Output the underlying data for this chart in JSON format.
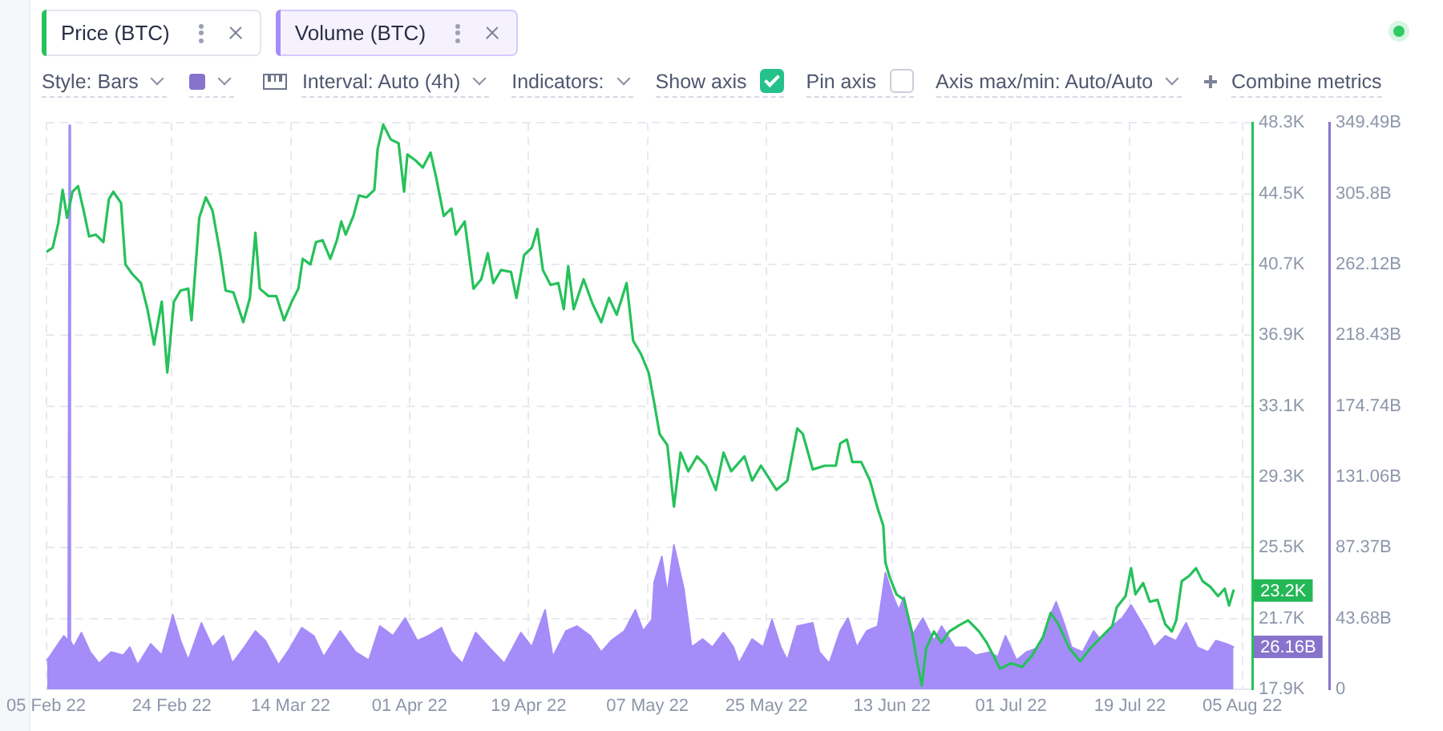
{
  "chart_data": {
    "type": "line",
    "annotations": [
      "Style: Bars",
      "Interval: Auto (4h)",
      "Indicators:",
      "Show axis",
      "Pin axis",
      "Axis max/min: Auto/Auto",
      "Combine metrics"
    ],
    "series": [
      {
        "name": "Price (BTC)",
        "type": "line",
        "color": "#26c15a",
        "x": [
          "2022-02-05T04:00",
          "2022-02-06T00:00",
          "2022-02-06T20:00",
          "2022-02-07T12:00",
          "2022-02-08T04:00",
          "2022-02-09T00:00",
          "2022-02-09T20:00",
          "2022-02-10T16:00",
          "2022-02-11T12:00",
          "2022-02-12T12:00",
          "2022-02-13T16:00",
          "2022-02-14T12:00",
          "2022-02-15T04:00",
          "2022-02-16T08:00",
          "2022-02-17T00:00",
          "2022-02-18T00:00",
          "2022-02-19T08:00",
          "2022-02-20T08:00",
          "2022-02-21T08:00",
          "2022-02-22T12:00",
          "2022-02-23T08:00",
          "2022-02-24T08:00",
          "2022-02-25T08:00",
          "2022-02-26T12:00",
          "2022-02-27T00:00",
          "2022-02-28T04:00",
          "2022-03-01T04:00",
          "2022-03-02T04:00",
          "2022-03-03T08:00",
          "2022-03-04T04:00",
          "2022-03-05T08:00",
          "2022-03-06T20:00",
          "2022-03-07T20:00",
          "2022-03-08T16:00",
          "2022-03-09T08:00",
          "2022-03-10T16:00",
          "2022-03-11T20:00",
          "2022-03-13T00:00",
          "2022-03-14T04:00",
          "2022-03-15T04:00",
          "2022-03-15T20:00",
          "2022-03-17T00:00",
          "2022-03-17T20:00",
          "2022-03-18T20:00",
          "2022-03-20T00:00",
          "2022-03-21T00:00",
          "2022-03-21T16:00",
          "2022-03-22T08:00",
          "2022-03-23T12:00",
          "2022-03-24T08:00",
          "2022-03-25T12:00",
          "2022-03-26T16:00",
          "2022-03-27T04:00",
          "2022-03-28T00:00",
          "2022-03-29T04:00",
          "2022-03-30T08:00",
          "2022-03-31T04:00",
          "2022-03-31T16:00",
          "2022-04-01T20:00",
          "2022-04-03T00:00",
          "2022-04-04T04:00",
          "2022-04-05T00:00",
          "2022-04-06T04:00",
          "2022-04-07T08:00",
          "2022-04-08T00:00",
          "2022-04-09T08:00",
          "2022-04-10T16:00",
          "2022-04-11T20:00",
          "2022-04-12T20:00",
          "2022-04-13T16:00",
          "2022-04-14T20:00",
          "2022-04-16T08:00",
          "2022-04-17T04:00",
          "2022-04-18T08:00",
          "2022-04-19T12:00",
          "2022-04-20T08:00",
          "2022-04-21T04:00",
          "2022-04-22T08:00",
          "2022-04-23T12:00",
          "2022-04-24T08:00",
          "2022-04-25T00:00",
          "2022-04-25T20:00",
          "2022-04-27T08:00",
          "2022-04-28T16:00",
          "2022-04-30T00:00",
          "2022-05-01T04:00",
          "2022-05-02T08:00",
          "2022-05-03T20:00",
          "2022-05-04T20:00",
          "2022-05-06T00:00",
          "2022-05-07T04:00",
          "2022-05-08T00:00",
          "2022-05-08T20:00",
          "2022-05-10T00:00",
          "2022-05-11T00:00",
          "2022-05-12T00:00",
          "2022-05-13T04:00",
          "2022-05-14T12:00",
          "2022-05-15T20:00",
          "2022-05-17T08:00",
          "2022-05-18T12:00",
          "2022-05-19T16:00",
          "2022-05-21T16:00",
          "2022-05-22T20:00",
          "2022-05-24T04:00",
          "2022-05-26T12:00",
          "2022-05-28T04:00",
          "2022-05-29T16:00",
          "2022-05-30T12:00",
          "2022-06-01T00:00",
          "2022-06-02T20:00",
          "2022-06-04T12:00",
          "2022-06-05T04:00",
          "2022-06-06T04:00",
          "2022-06-07T00:00",
          "2022-06-08T08:00",
          "2022-06-09T16:00",
          "2022-06-10T20:00",
          "2022-06-11T16:00",
          "2022-06-12T00:00",
          "2022-06-12T16:00",
          "2022-06-13T16:00",
          "2022-06-14T20:00",
          "2022-06-16T00:00",
          "2022-06-16T20:00",
          "2022-06-17T12:00",
          "2022-06-18T04:00",
          "2022-06-19T08:00",
          "2022-06-20T12:00",
          "2022-06-21T16:00",
          "2022-06-23T00:00",
          "2022-06-24T12:00",
          "2022-06-26T04:00",
          "2022-06-27T08:00",
          "2022-06-28T12:00",
          "2022-06-29T08:00",
          "2022-07-01T00:00",
          "2022-07-02T16:00",
          "2022-07-04T04:00",
          "2022-07-05T20:00",
          "2022-07-07T00:00",
          "2022-07-08T04:00",
          "2022-07-09T20:00",
          "2022-07-11T12:00",
          "2022-07-13T00:00",
          "2022-07-14T16:00",
          "2022-07-16T08:00",
          "2022-07-17T00:00",
          "2022-07-18T08:00",
          "2022-07-19T04:00",
          "2022-07-19T20:00",
          "2022-07-21T00:00",
          "2022-07-22T00:00",
          "2022-07-23T04:00",
          "2022-07-24T08:00",
          "2022-07-25T08:00",
          "2022-07-26T00:00",
          "2022-07-26T20:00",
          "2022-07-28T00:00",
          "2022-07-29T00:00",
          "2022-07-30T00:00",
          "2022-07-31T04:00",
          "2022-08-01T08:00",
          "2022-08-02T08:00",
          "2022-08-03T00:00",
          "2022-08-03T16:00"
        ],
        "values": [
          41.4,
          41.6,
          42.9,
          44.7,
          43.2,
          44.6,
          44.9,
          43.6,
          42.2,
          42.3,
          41.9,
          44.2,
          44.6,
          44.0,
          40.7,
          40.2,
          39.7,
          38.3,
          36.4,
          38.7,
          34.9,
          38.7,
          39.3,
          39.4,
          37.7,
          43.2,
          44.3,
          43.6,
          41.3,
          39.3,
          39.2,
          37.6,
          38.9,
          42.4,
          39.4,
          39.0,
          39.0,
          37.7,
          38.7,
          39.4,
          41.0,
          40.7,
          41.9,
          42.0,
          41.0,
          42.0,
          43.0,
          42.3,
          43.3,
          44.4,
          44.3,
          44.7,
          46.9,
          48.2,
          47.4,
          47.2,
          44.6,
          46.6,
          46.3,
          45.9,
          46.7,
          45.4,
          43.3,
          43.7,
          42.3,
          43.0,
          39.4,
          39.9,
          41.3,
          39.7,
          40.4,
          40.3,
          38.9,
          41.2,
          41.6,
          42.6,
          40.4,
          39.6,
          39.7,
          38.3,
          40.6,
          38.3,
          39.9,
          38.6,
          37.6,
          38.9,
          38.0,
          39.7,
          36.6,
          35.9,
          34.9,
          33.3,
          31.6,
          31.0,
          27.7,
          30.6,
          29.6,
          30.4,
          29.9,
          28.6,
          30.6,
          29.6,
          30.4,
          29.1,
          29.9,
          28.6,
          29.1,
          31.9,
          31.6,
          29.7,
          29.9,
          29.9,
          31.1,
          31.3,
          30.1,
          30.1,
          29.1,
          27.6,
          26.7,
          24.7,
          23.9,
          23.0,
          22.7,
          21.0,
          19.3,
          18.1,
          20.1,
          21.0,
          20.4,
          21.0,
          21.3,
          21.6,
          21.0,
          20.4,
          19.6,
          19.0,
          19.3,
          19.1,
          19.7,
          20.7,
          22.0,
          21.4,
          20.1,
          19.4,
          20.1,
          20.7,
          21.3,
          22.3,
          22.9,
          24.4,
          23.0,
          23.6,
          22.6,
          22.7,
          21.4,
          21.0,
          21.6,
          23.7,
          24.0,
          24.4,
          23.7,
          23.4,
          22.9,
          23.3,
          22.4,
          23.2
        ],
        "value_labels": [
          null,
          null,
          null,
          null,
          null,
          null,
          null,
          null,
          null,
          null,
          null,
          null,
          null,
          null,
          null,
          null,
          null,
          null,
          null,
          null,
          null,
          null,
          null,
          null,
          null,
          null,
          null,
          null,
          null,
          null,
          null,
          null,
          null,
          null,
          null,
          null,
          null,
          null,
          null,
          null,
          null,
          null,
          null,
          null,
          null,
          null,
          null,
          null,
          null,
          null,
          null,
          null,
          null,
          null,
          null,
          null,
          null,
          null,
          null,
          null,
          null,
          null,
          null,
          null,
          null,
          null,
          null,
          null,
          null,
          null,
          null,
          null,
          null,
          null,
          null,
          null,
          null,
          null,
          null,
          null,
          null,
          null,
          null,
          null,
          null,
          null,
          null,
          null,
          null,
          null,
          null,
          null,
          null,
          null,
          null,
          null,
          null,
          null,
          null,
          null,
          null,
          null,
          null,
          null,
          null,
          null,
          null,
          null,
          null,
          null,
          null,
          null,
          null,
          null,
          null,
          null,
          null,
          null,
          null,
          null,
          null,
          null,
          null,
          null,
          null,
          null,
          null,
          null,
          null,
          null,
          null,
          null,
          null,
          null,
          null,
          null,
          null,
          null,
          null,
          null,
          null,
          null,
          null,
          null,
          null,
          null,
          null,
          null,
          null,
          null,
          null,
          null,
          null,
          null,
          null,
          null,
          null,
          null,
          null,
          null,
          null,
          null,
          null,
          null,
          null,
          "23.2K"
        ]
      },
      {
        "name": "Volume (BTC)",
        "type": "area",
        "axis": "y2",
        "color": "#a58cf9",
        "x": [
          "2022-02-05T04:00",
          "2022-02-07T16:00",
          "2022-02-08T08:00",
          "2022-02-08T12:00",
          "2022-02-08T16:00",
          "2022-02-09T04:00",
          "2022-02-10T08:00",
          "2022-02-11T16:00",
          "2022-02-13T00:00",
          "2022-02-14T20:00",
          "2022-02-16T16:00",
          "2022-02-17T16:00",
          "2022-02-18T20:00",
          "2022-02-20T20:00",
          "2022-02-22T12:00",
          "2022-02-24T04:00",
          "2022-02-25T08:00",
          "2022-02-26T12:00",
          "2022-02-28T12:00",
          "2022-03-02T04:00",
          "2022-03-03T20:00",
          "2022-03-05T04:00",
          "2022-03-07T00:00",
          "2022-03-08T16:00",
          "2022-03-10T04:00",
          "2022-03-12T04:00",
          "2022-03-13T20:00",
          "2022-03-15T16:00",
          "2022-03-17T12:00",
          "2022-03-19T00:00",
          "2022-03-21T12:00",
          "2022-03-23T20:00",
          "2022-03-25T20:00",
          "2022-03-27T12:00",
          "2022-03-29T12:00",
          "2022-03-31T08:00",
          "2022-04-02T04:00",
          "2022-04-03T20:00",
          "2022-04-05T20:00",
          "2022-04-07T08:00",
          "2022-04-09T00:00",
          "2022-04-11T00:00",
          "2022-04-13T00:00",
          "2022-04-15T08:00",
          "2022-04-17T20:00",
          "2022-04-19T12:00",
          "2022-04-21T12:00",
          "2022-04-22T16:00",
          "2022-04-24T16:00",
          "2022-04-26T08:00",
          "2022-04-28T08:00",
          "2022-04-30T00:00",
          "2022-05-01T12:00",
          "2022-05-03T12:00",
          "2022-05-05T04:00",
          "2022-05-06T08:00",
          "2022-05-07T16:00",
          "2022-05-08T00:00",
          "2022-05-09T04:00",
          "2022-05-10T00:00",
          "2022-05-11T00:00",
          "2022-05-12T12:00",
          "2022-05-13T16:00",
          "2022-05-15T08:00",
          "2022-05-16T20:00",
          "2022-05-18T12:00",
          "2022-05-20T00:00",
          "2022-05-20T20:00",
          "2022-05-22T20:00",
          "2022-05-24T12:00",
          "2022-05-25T20:00",
          "2022-05-27T04:00",
          "2022-05-28T04:00",
          "2022-05-29T16:00",
          "2022-06-01T00:00",
          "2022-06-02T00:00",
          "2022-06-03T12:00",
          "2022-06-05T04:00",
          "2022-06-06T08:00",
          "2022-06-07T16:00",
          "2022-06-09T04:00",
          "2022-06-10T20:00",
          "2022-06-12T00:00",
          "2022-06-13T00:00",
          "2022-06-14T00:00",
          "2022-06-14T20:00",
          "2022-06-16T00:00",
          "2022-06-17T16:00",
          "2022-06-19T08:00",
          "2022-06-20T12:00",
          "2022-06-22T12:00",
          "2022-06-24T04:00",
          "2022-06-25T16:00",
          "2022-06-27T20:00",
          "2022-06-29T00:00",
          "2022-06-30T04:00",
          "2022-07-01T20:00",
          "2022-07-03T08:00",
          "2022-07-05T08:00",
          "2022-07-06T16:00",
          "2022-07-07T20:00",
          "2022-07-09T00:00",
          "2022-07-10T04:00",
          "2022-07-11T20:00",
          "2022-07-13T12:00",
          "2022-07-14T16:00",
          "2022-07-16T08:00",
          "2022-07-17T20:00",
          "2022-07-19T04:00",
          "2022-07-20T08:00",
          "2022-07-21T12:00",
          "2022-07-22T16:00",
          "2022-07-24T08:00",
          "2022-07-26T00:00",
          "2022-07-27T12:00",
          "2022-07-29T04:00",
          "2022-07-30T20:00",
          "2022-08-01T00:00",
          "2022-08-02T16:00",
          "2022-08-03T16:00"
        ],
        "values": [
          18,
          33,
          30,
          348,
          30,
          26,
          35,
          23,
          16,
          23,
          21,
          26,
          15,
          28,
          21,
          46,
          30,
          18,
          41,
          26,
          33,
          16,
          26,
          36,
          30,
          15,
          25,
          38,
          33,
          20,
          36,
          23,
          18,
          39,
          33,
          44,
          30,
          33,
          38,
          23,
          16,
          35,
          26,
          16,
          35,
          26,
          49,
          20,
          36,
          39,
          33,
          23,
          30,
          36,
          49,
          36,
          43,
          66,
          82,
          59,
          89,
          62,
          26,
          31,
          26,
          35,
          26,
          16,
          31,
          26,
          43,
          26,
          18,
          39,
          41,
          23,
          16,
          36,
          44,
          26,
          36,
          39,
          72,
          59,
          49,
          57,
          33,
          44,
          30,
          39,
          26,
          26,
          21,
          23,
          20,
          33,
          18,
          23,
          26,
          43,
          54,
          41,
          26,
          23,
          36,
          30,
          39,
          44,
          52,
          44,
          36,
          26,
          33,
          30,
          41,
          26,
          23,
          30,
          28,
          26.16
        ],
        "value_labels": [
          null,
          null,
          null,
          null,
          null,
          null,
          null,
          null,
          null,
          null,
          null,
          null,
          null,
          null,
          null,
          null,
          null,
          null,
          null,
          null,
          null,
          null,
          null,
          null,
          null,
          null,
          null,
          null,
          null,
          null,
          null,
          null,
          null,
          null,
          null,
          null,
          null,
          null,
          null,
          null,
          null,
          null,
          null,
          null,
          null,
          null,
          null,
          null,
          null,
          null,
          null,
          null,
          null,
          null,
          null,
          null,
          null,
          null,
          null,
          null,
          null,
          null,
          null,
          null,
          null,
          null,
          null,
          null,
          null,
          null,
          null,
          null,
          null,
          null,
          null,
          null,
          null,
          null,
          null,
          null,
          null,
          null,
          null,
          null,
          null,
          null,
          null,
          null,
          null,
          null,
          null,
          null,
          null,
          null,
          null,
          null,
          null,
          null,
          null,
          null,
          null,
          null,
          null,
          null,
          null,
          null,
          null,
          null,
          null,
          null,
          null,
          null,
          null,
          null,
          null,
          null,
          null,
          null,
          null,
          "26.16B"
        ]
      }
    ],
    "xlim": [
      "2022-02-05T00:00",
      "2022-08-06T12:00"
    ],
    "xticks": [
      {
        "value": "2022-02-05",
        "label": "05 Feb 22"
      },
      {
        "value": "2022-02-24",
        "label": "24 Feb 22"
      },
      {
        "value": "2022-03-14",
        "label": "14 Mar 22"
      },
      {
        "value": "2022-04-01",
        "label": "01 Apr 22"
      },
      {
        "value": "2022-04-19",
        "label": "19 Apr 22"
      },
      {
        "value": "2022-05-07",
        "label": "07 May 22"
      },
      {
        "value": "2022-05-25",
        "label": "25 May 22"
      },
      {
        "value": "2022-06-13",
        "label": "13 Jun 22"
      },
      {
        "value": "2022-07-01",
        "label": "01 Jul 22"
      },
      {
        "value": "2022-07-19",
        "label": "19 Jul 22"
      },
      {
        "value": "2022-08-05",
        "label": "05 Aug 22"
      }
    ],
    "ylim": [
      17.9,
      48.3
    ],
    "yticks": [
      {
        "value": 17.9,
        "label": "17.9K"
      },
      {
        "value": 21.7,
        "label": "21.7K"
      },
      {
        "value": 25.5,
        "label": "25.5K"
      },
      {
        "value": 29.3,
        "label": "29.3K"
      },
      {
        "value": 33.1,
        "label": "33.1K"
      },
      {
        "value": 36.9,
        "label": "36.9K"
      },
      {
        "value": 40.7,
        "label": "40.7K"
      },
      {
        "value": 44.5,
        "label": "44.5K"
      },
      {
        "value": 48.3,
        "label": "48.3K"
      }
    ],
    "y2lim": [
      0,
      349.49
    ],
    "y2ticks": [
      0,
      {
        "value": 43.68,
        "label": "43.68B"
      },
      {
        "value": 87.37,
        "label": "87.37B"
      },
      {
        "value": 131.06,
        "label": "131.06B"
      },
      {
        "value": 174.74,
        "label": "174.74B"
      },
      {
        "value": 218.43,
        "label": "218.43B"
      },
      {
        "value": 262.12,
        "label": "262.12B"
      },
      {
        "value": 305.8,
        "label": "305.8B"
      },
      {
        "value": 349.49,
        "label": "349.49B"
      }
    ],
    "grid": true,
    "legend": "top left",
    "marker": "none"
  }
}
